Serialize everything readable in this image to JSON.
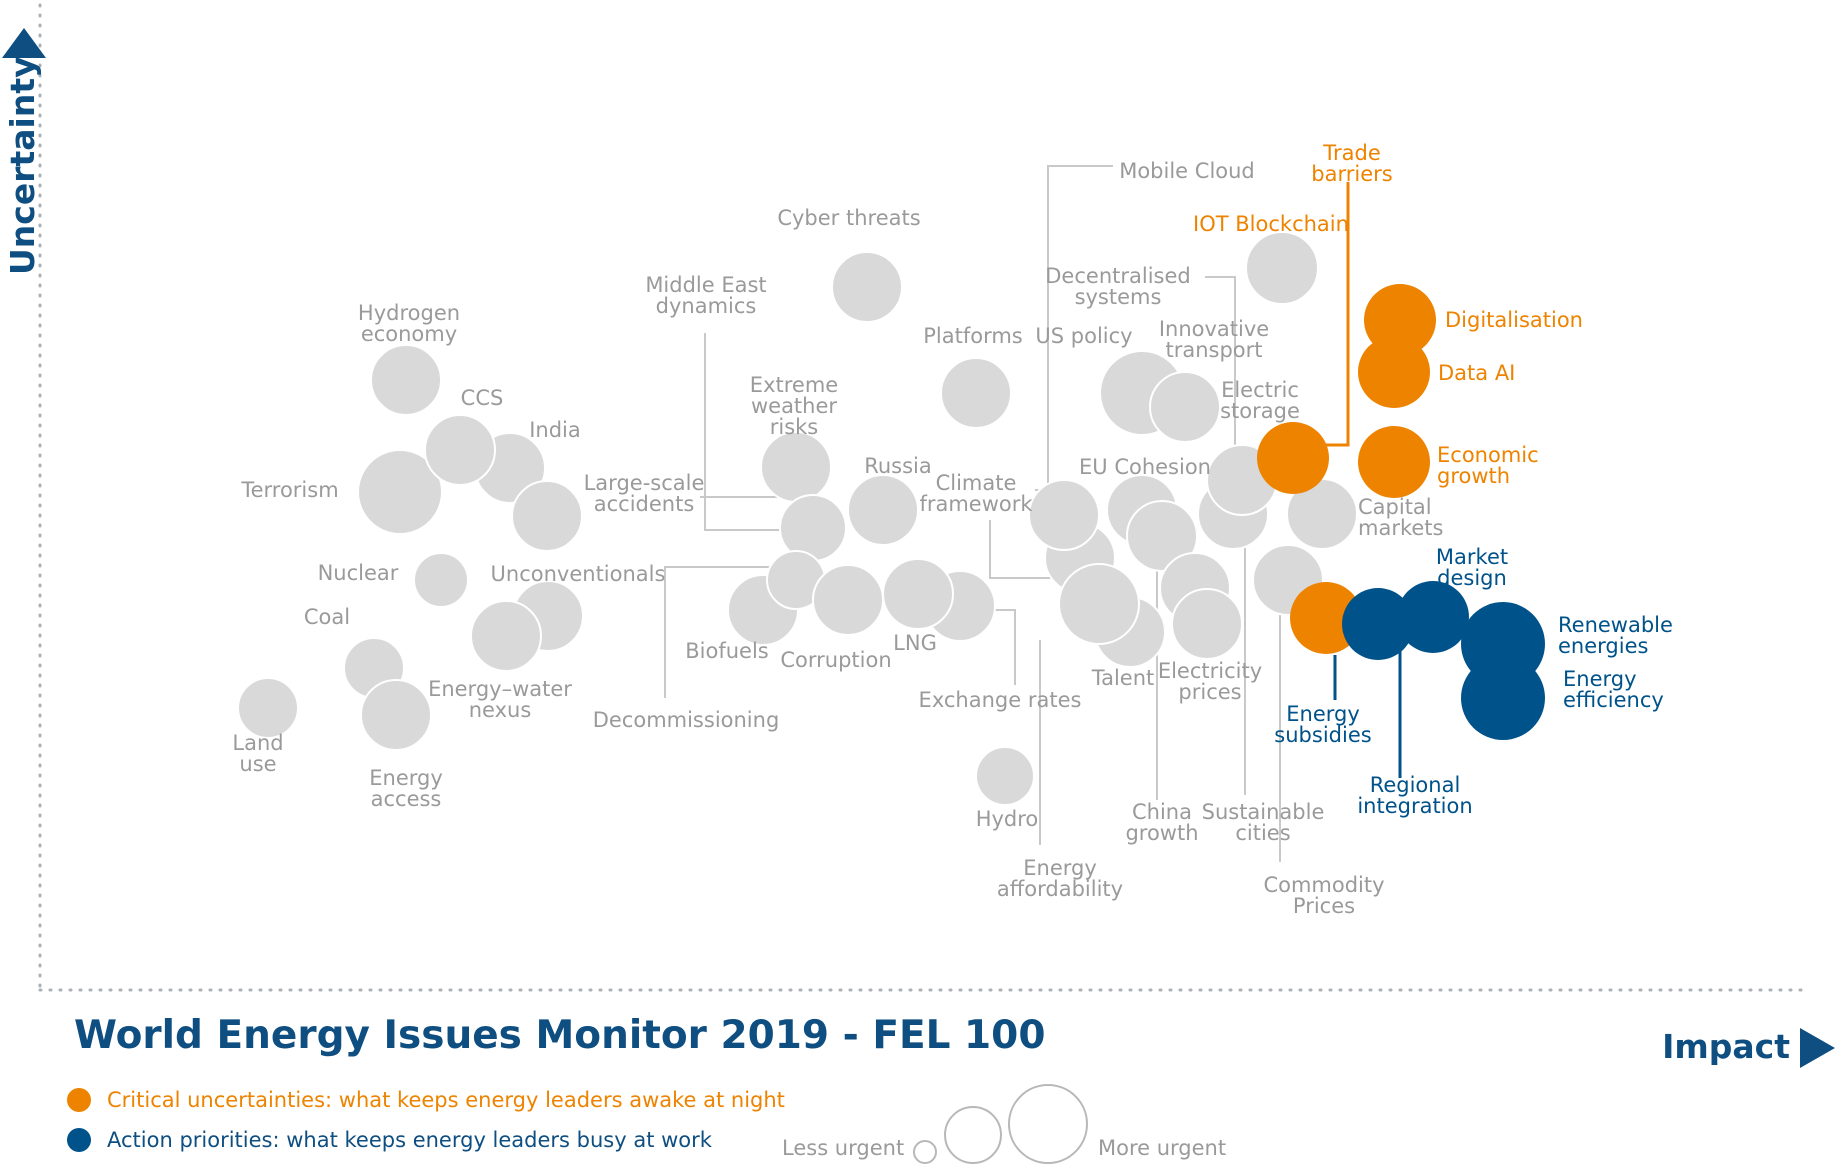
{
  "chart_data": {
    "type": "scatter",
    "title": "World Energy Issues Monitor 2019 - FEL 100",
    "xlabel": "Impact",
    "ylabel": "Uncertainty",
    "xlim": [
      0,
      100
    ],
    "ylim": [
      0,
      100
    ],
    "legend": {
      "placement": "bottom-left",
      "entries": [
        {
          "label": "Critical uncertainties: what keeps energy leaders awake at night",
          "color": "#ee8300"
        },
        {
          "label": "Action priorities: what keeps energy leaders busy at work",
          "color": "#00528a"
        }
      ]
    },
    "size_legend": {
      "less": "Less urgent",
      "more": "More urgent",
      "sizes": [
        0.25,
        0.6,
        1.0
      ]
    },
    "colors": {
      "grey": "#d9d9d9",
      "orange": "#ee8300",
      "blue": "#00528a",
      "axis": "#0e4e80"
    },
    "points": [
      {
        "name": "Land use",
        "label": [
          "Land",
          "use"
        ],
        "x": 12.5,
        "y": 29,
        "size": 0.6,
        "group": "grey"
      },
      {
        "name": "Coal",
        "label": [
          "Coal"
        ],
        "x": 18.5,
        "y": 33.5,
        "size": 0.6,
        "group": "grey"
      },
      {
        "name": "Energy access",
        "label": [
          "Energy",
          "access"
        ],
        "x": 19.7,
        "y": 29.5,
        "size": 0.7,
        "group": "grey"
      },
      {
        "name": "Hydrogen economy",
        "label": [
          "Hydrogen",
          "economy"
        ],
        "x": 20.3,
        "y": 64.5,
        "size": 0.7,
        "group": "grey"
      },
      {
        "name": "Terrorism",
        "label": [
          "Terrorism"
        ],
        "x": 20,
        "y": 53.5,
        "size": 0.85,
        "group": "grey"
      },
      {
        "name": "Nuclear",
        "label": [
          "Nuclear"
        ],
        "x": 22.3,
        "y": 43.5,
        "size": 0.45,
        "group": "grey"
      },
      {
        "name": "CCS",
        "label": [
          "CCS"
        ],
        "x": 23.1,
        "y": 57.5,
        "size": 0.7,
        "group": "grey"
      },
      {
        "name": "India",
        "label": [
          "India"
        ],
        "x": 25.7,
        "y": 55.5,
        "size": 0.7,
        "group": "grey"
      },
      {
        "name": "Unconventionals",
        "label": [
          "Unconventionals"
        ],
        "x": 27.7,
        "y": 40.5,
        "size": 0.7,
        "group": "grey"
      },
      {
        "name": "Energy-water nexus",
        "label": [
          "Energy–water",
          "nexus"
        ],
        "x": 25.5,
        "y": 37,
        "size": 0.7,
        "group": "grey"
      },
      {
        "name": "Large-scale accidents",
        "label": [
          "Large-scale",
          "accidents"
        ],
        "x": 27.5,
        "y": 50.5,
        "size": 0.7,
        "group": "grey"
      },
      {
        "name": "Biofuels",
        "label": [
          "Biofuels"
        ],
        "x": 38.3,
        "y": 40.3,
        "size": 0.7,
        "group": "grey"
      },
      {
        "name": "Middle East dynamics",
        "label": [
          "Middle East",
          "dynamics"
        ],
        "x": 40.8,
        "y": 46.5,
        "size": 0.65,
        "group": "grey"
      },
      {
        "name": "Decommissioning",
        "label": [
          "Decommissioning"
        ],
        "x": 40,
        "y": 43.7,
        "size": 0.55,
        "group": "grey"
      },
      {
        "name": "Extreme weather risks",
        "label": [
          "Extreme",
          "weather",
          "risks"
        ],
        "x": 40.2,
        "y": 55.2,
        "size": 0.7,
        "group": "grey"
      },
      {
        "name": "Corruption",
        "label": [
          "Corruption"
        ],
        "x": 42.8,
        "y": 41.2,
        "size": 0.7,
        "group": "grey"
      },
      {
        "name": "Russia",
        "label": [
          "Russia"
        ],
        "x": 44.7,
        "y": 52,
        "size": 0.7,
        "group": "grey"
      },
      {
        "name": "Cyber threats",
        "label": [
          "Cyber threats"
        ],
        "x": 43.9,
        "y": 76.5,
        "size": 0.7,
        "group": "grey"
      },
      {
        "name": "LNG",
        "label": [
          "LNG"
        ],
        "x": 46.5,
        "y": 42.2,
        "size": 0.7,
        "group": "grey"
      },
      {
        "name": "Exchange rates",
        "label": [
          "Exchange rates"
        ],
        "x": 49,
        "y": 40.5,
        "size": 0.7,
        "group": "grey"
      },
      {
        "name": "Platforms",
        "label": [
          "Platforms"
        ],
        "x": 49.4,
        "y": 63.5,
        "size": 0.7,
        "group": "grey"
      },
      {
        "name": "Hydro",
        "label": [
          "Hydro"
        ],
        "x": 51,
        "y": 22.5,
        "size": 0.6,
        "group": "grey"
      },
      {
        "name": "Climate framework",
        "label": [
          "Climate",
          "framework"
        ],
        "x": 54.2,
        "y": 51,
        "size": 0.7,
        "group": "grey"
      },
      {
        "name": "Energy affordability",
        "label": [
          "Energy",
          "affordability"
        ],
        "x": 54.7,
        "y": 46.5,
        "size": 0.7,
        "group": "grey"
      },
      {
        "name": "Mobile Cloud",
        "label": [
          "Mobile Cloud"
        ],
        "x": 55,
        "y": 43,
        "size": 0.7,
        "group": "grey"
      },
      {
        "name": "Talent",
        "label": [
          "Talent"
        ],
        "x": 57.3,
        "y": 39.7,
        "size": 0.7,
        "group": "grey"
      },
      {
        "name": "Energy affordability (2)",
        "label": [],
        "x": 55.8,
        "y": 41.2,
        "size": 0.8,
        "group": "grey"
      },
      {
        "name": "US policy",
        "label": [
          "US policy"
        ],
        "x": 58,
        "y": 63.5,
        "size": 0.85,
        "group": "grey"
      },
      {
        "name": "EU Cohesion",
        "label": [
          "EU Cohesion"
        ],
        "x": 58,
        "y": 51,
        "size": 0.7,
        "group": "grey"
      },
      {
        "name": "China growth",
        "label": [
          "China",
          "growth"
        ],
        "x": 59,
        "y": 49,
        "size": 0.7,
        "group": "grey"
      },
      {
        "name": "Decentralised systems",
        "label": [
          "Decentralised",
          "systems"
        ],
        "x": 60.4,
        "y": 44.5,
        "size": 0.7,
        "group": "grey"
      },
      {
        "name": "Innovative transport",
        "label": [
          "Innovative",
          "transport"
        ],
        "x": 60.5,
        "y": 62,
        "size": 0.7,
        "group": "grey"
      },
      {
        "name": "Electricity prices",
        "label": [
          "Electricity",
          "prices"
        ],
        "x": 61.6,
        "y": 39.7,
        "size": 0.7,
        "group": "grey"
      },
      {
        "name": "Sustainable cities",
        "label": [
          "Sustainable",
          "cities"
        ],
        "x": 63,
        "y": 49.7,
        "size": 0.7,
        "group": "grey"
      },
      {
        "name": "Electric storage",
        "label": [
          "Electric",
          "storage"
        ],
        "x": 63.5,
        "y": 52.5,
        "size": 0.7,
        "group": "grey"
      },
      {
        "name": "Commodity Prices",
        "label": [
          "Commodity",
          "Prices"
        ],
        "x": 66.2,
        "y": 43.5,
        "size": 0.7,
        "group": "grey"
      },
      {
        "name": "Capital markets",
        "label": [
          "Capital",
          "markets"
        ],
        "x": 68,
        "y": 49.5,
        "size": 0.7,
        "group": "grey"
      },
      {
        "name": "IOT Blockchain",
        "label": [
          "IOT Blockchain"
        ],
        "x": 65.5,
        "y": 75.5,
        "size": 0.7,
        "group": "orange"
      },
      {
        "name": "Trade barriers",
        "label": [
          "Trade",
          "barriers"
        ],
        "x": 66.1,
        "y": 55,
        "size": 0.7,
        "group": "orange"
      },
      {
        "name": "Digitalisation",
        "label": [
          "Digitalisation"
        ],
        "x": 71.8,
        "y": 68.5,
        "size": 0.7,
        "group": "orange"
      },
      {
        "name": "Data AI",
        "label": [
          "Data AI"
        ],
        "x": 71.4,
        "y": 63.5,
        "size": 0.7,
        "group": "orange"
      },
      {
        "name": "Economic growth",
        "label": [
          "Economic",
          "growth"
        ],
        "x": 71.4,
        "y": 54.5,
        "size": 0.7,
        "group": "orange"
      },
      {
        "name": "Energy subsidies",
        "label": [
          "Energy",
          "subsidies"
        ],
        "x": 68,
        "y": 39.5,
        "size": 0.7,
        "group": "blue"
      },
      {
        "name": "Regional integration",
        "label": [
          "Regional",
          "integration"
        ],
        "x": 70.7,
        "y": 38.7,
        "size": 0.7,
        "group": "blue"
      },
      {
        "name": "Market design",
        "label": [
          "Market",
          "design"
        ],
        "x": 73.5,
        "y": 40,
        "size": 0.7,
        "group": "blue"
      },
      {
        "name": "Renewable energies",
        "label": [
          "Renewable",
          "energies"
        ],
        "x": 77.8,
        "y": 37.5,
        "size": 0.85,
        "group": "blue"
      },
      {
        "name": "Energy efficiency",
        "label": [
          "Energy",
          "efficiency"
        ],
        "x": 77.7,
        "y": 31.5,
        "size": 0.85,
        "group": "blue"
      }
    ]
  }
}
